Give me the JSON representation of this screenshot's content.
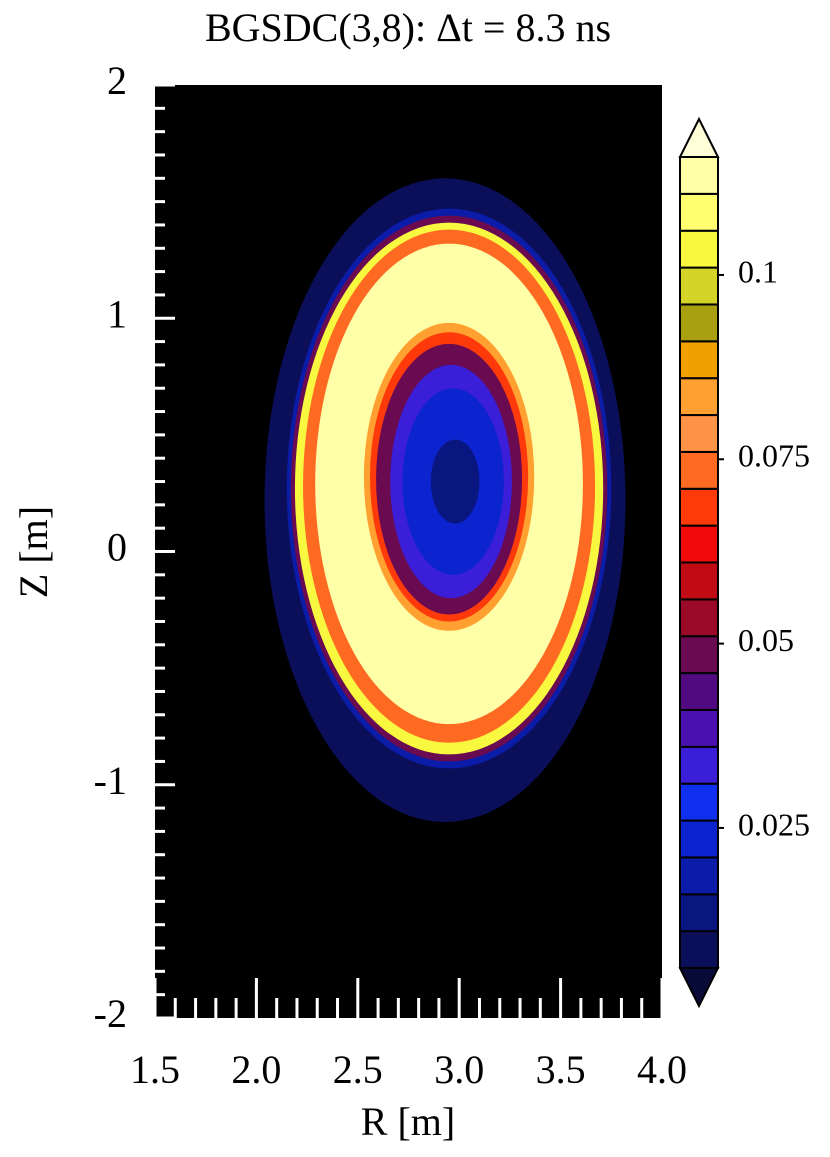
{
  "chart_data": {
    "type": "contour",
    "title": "BGSDC(3,8): Δt = 8.3 ns",
    "xlabel": "R [m]",
    "ylabel": "Z [m]",
    "xlim": [
      1.5,
      4.0
    ],
    "ylim": [
      -2,
      2
    ],
    "xticks": [
      1.5,
      {
        "value": 2,
        "label": "2.0"
      },
      2.5,
      {
        "value": 3,
        "label": "3.0"
      },
      3.5,
      {
        "value": 4,
        "label": "4.0"
      }
    ],
    "yticks": [
      -2,
      -1,
      0,
      1,
      2
    ],
    "background": "#000000",
    "contours": [
      {
        "R": 2.93,
        "Z": 0.22,
        "dR": 0.89,
        "dZ": 1.38,
        "value": 0.009
      },
      {
        "R": 2.95,
        "Z": 0.27,
        "dR": 0.8,
        "dZ": 1.2,
        "value": 0.017
      },
      {
        "R": 2.95,
        "Z": 0.27,
        "dR": 0.78,
        "dZ": 1.17,
        "value": 0.05
      },
      {
        "R": 2.95,
        "Z": 0.27,
        "dR": 0.76,
        "dZ": 1.14,
        "value": 0.105
      },
      {
        "R": 2.95,
        "Z": 0.28,
        "dR": 0.72,
        "dZ": 1.1,
        "value": 0.075
      },
      {
        "R": 2.95,
        "Z": 0.29,
        "dR": 0.66,
        "dZ": 1.03,
        "value": 0.113
      },
      {
        "R": 2.95,
        "Z": 0.32,
        "dR": 0.42,
        "dZ": 0.66,
        "value": 0.085
      },
      {
        "R": 2.95,
        "Z": 0.32,
        "dR": 0.39,
        "dZ": 0.62,
        "value": 0.07
      },
      {
        "R": 2.95,
        "Z": 0.31,
        "dR": 0.36,
        "dZ": 0.58,
        "value": 0.05
      },
      {
        "R": 2.96,
        "Z": 0.3,
        "dR": 0.3,
        "dZ": 0.5,
        "value": 0.033
      },
      {
        "R": 2.97,
        "Z": 0.3,
        "dR": 0.25,
        "dZ": 0.4,
        "value": 0.021
      },
      {
        "R": 2.98,
        "Z": 0.3,
        "dR": 0.12,
        "dZ": 0.18,
        "value": 0.012
      }
    ],
    "colorbar": {
      "lim": [
        0.006,
        0.116
      ],
      "ticks": [
        0.025,
        0.05,
        0.075,
        0.1
      ],
      "colors": [
        "#0b0f5a",
        "#0a1680",
        "#0a1ca8",
        "#0c24d0",
        "#1030f0",
        "#3a1ed8",
        "#4a10b0",
        "#520a80",
        "#6a0a50",
        "#9a0a28",
        "#c00a14",
        "#f00a0a",
        "#ff3a0a",
        "#ff6a22",
        "#ff9448",
        "#ffa030",
        "#f0a000",
        "#a8a010",
        "#d4d428",
        "#f8f840",
        "#ffff70",
        "#ffffa8"
      ],
      "under": "#080a38",
      "over": "#ffffd8"
    }
  }
}
